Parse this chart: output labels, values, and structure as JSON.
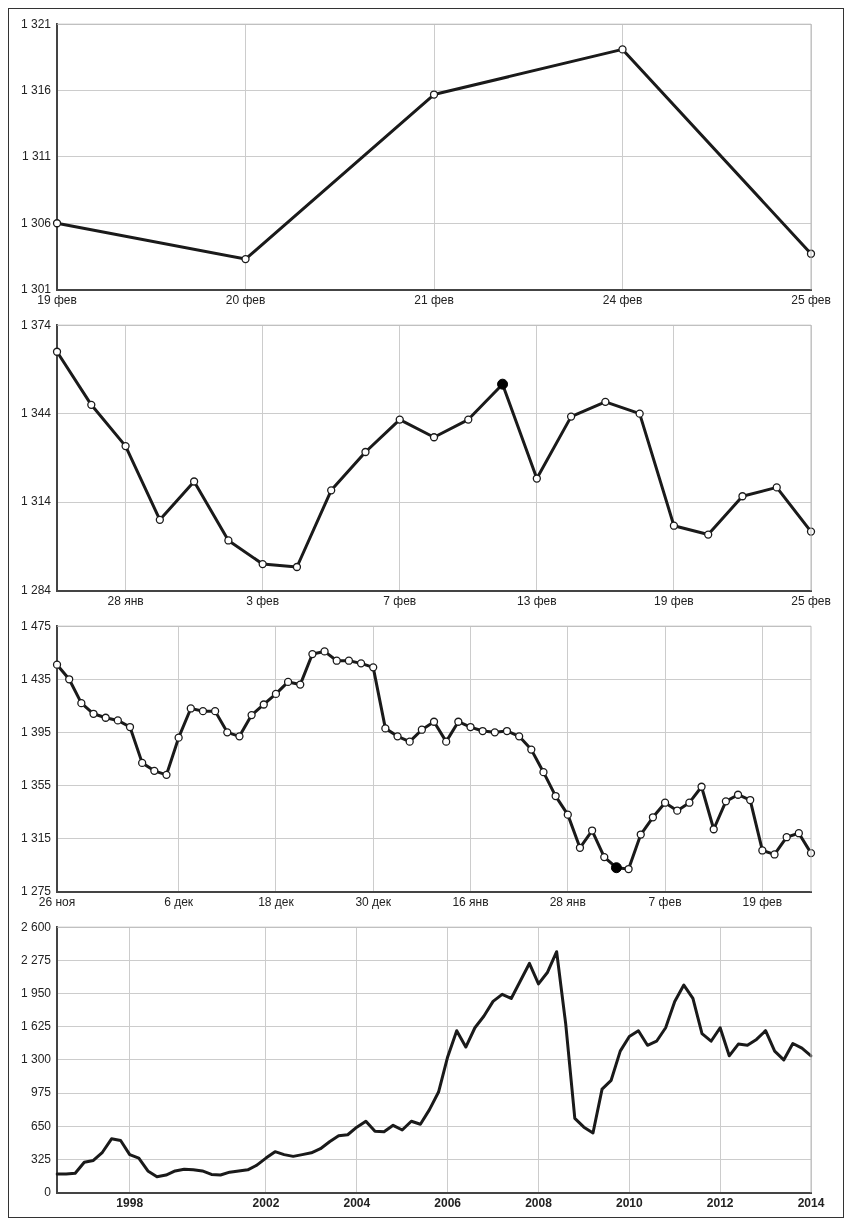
{
  "chart_data": [
    {
      "type": "line",
      "categories": [
        "19 фев",
        "20 фев",
        "21 фев",
        "24 фев",
        "25 фев"
      ],
      "series": [
        {
          "color": "#1a1a1a",
          "values": [
            1306.0,
            1303.3,
            1315.7,
            1319.1,
            1303.7
          ]
        }
      ],
      "ylim": [
        1301,
        1321
      ],
      "yticks": [
        {
          "value": 1301,
          "label": "1 301"
        },
        {
          "value": 1306,
          "label": "1 306"
        },
        {
          "value": 1311,
          "label": "1 311"
        },
        {
          "value": 1316,
          "label": "1 316"
        },
        {
          "value": 1321,
          "label": "1 321"
        }
      ],
      "grid": true,
      "marker": "circle",
      "line_style": "solid"
    },
    {
      "type": "line",
      "categories": [
        null,
        null,
        "28 янв",
        null,
        null,
        null,
        "3 фев",
        null,
        null,
        null,
        "7 фев",
        null,
        null,
        null,
        "13 фев",
        null,
        null,
        null,
        "19 фев",
        null,
        null,
        null,
        "25 фев"
      ],
      "series": [
        {
          "color": "#1a1a1a",
          "values": [
            1365,
            1347,
            1333,
            1308,
            1321,
            1301,
            1293,
            1292,
            1318,
            1331,
            1342,
            1336,
            1342,
            1354,
            1322,
            1343,
            1348,
            1344,
            1306,
            1303,
            1316,
            1319,
            1304
          ]
        },
        {
          "type": "scatter",
          "color": "#000000",
          "values": [
            null,
            null,
            null,
            null,
            null,
            null,
            null,
            null,
            null,
            null,
            null,
            null,
            null,
            1354,
            null,
            null,
            null,
            null,
            null,
            null,
            null,
            null,
            null
          ]
        }
      ],
      "ylim": [
        1284,
        1374
      ],
      "yticks": [
        {
          "value": 1284,
          "label": "1 284"
        },
        {
          "value": 1314,
          "label": "1 314"
        },
        {
          "value": 1344,
          "label": "1 344"
        },
        {
          "value": 1374,
          "label": "1 374"
        }
      ],
      "grid": true,
      "marker": "circle",
      "line_style": "solid"
    },
    {
      "type": "line",
      "categories": [
        "26 ноя",
        null,
        null,
        null,
        null,
        null,
        null,
        null,
        null,
        null,
        "6 дек",
        null,
        null,
        null,
        null,
        null,
        null,
        null,
        "18 дек",
        null,
        null,
        null,
        null,
        null,
        null,
        null,
        "30 дек",
        null,
        null,
        null,
        null,
        null,
        null,
        null,
        "16 янв",
        null,
        null,
        null,
        null,
        null,
        null,
        null,
        "28 янв",
        null,
        null,
        null,
        null,
        null,
        null,
        null,
        "7 фев",
        null,
        null,
        null,
        null,
        null,
        null,
        null,
        "19 фев",
        null,
        null,
        null,
        null
      ],
      "series": [
        {
          "color": "#1a1a1a",
          "values": [
            1446,
            1435,
            1417,
            1409,
            1406,
            1404,
            1399,
            1372,
            1366,
            1363,
            1391,
            1413,
            1411,
            1411,
            1395,
            1392,
            1408,
            1416,
            1424,
            1433,
            1431,
            1454,
            1456,
            1449,
            1449,
            1447,
            1444,
            1398,
            1392,
            1388,
            1397,
            1403,
            1388,
            1403,
            1399,
            1396,
            1395,
            1396,
            1392,
            1382,
            1365,
            1347,
            1333,
            1308,
            1321,
            1301,
            1293,
            1292,
            1318,
            1331,
            1342,
            1336,
            1342,
            1354,
            1322,
            1343,
            1348,
            1344,
            1306,
            1303,
            1316,
            1319,
            1304
          ]
        },
        {
          "type": "scatter",
          "color": "#000000",
          "values": [
            null,
            null,
            null,
            null,
            null,
            null,
            null,
            null,
            null,
            null,
            null,
            null,
            null,
            null,
            null,
            null,
            null,
            null,
            null,
            null,
            null,
            null,
            null,
            null,
            null,
            null,
            null,
            null,
            null,
            null,
            null,
            null,
            null,
            null,
            null,
            null,
            null,
            null,
            null,
            null,
            null,
            null,
            null,
            null,
            null,
            null,
            1293,
            null,
            null,
            null,
            null,
            null,
            null,
            null,
            null,
            null,
            null,
            null,
            null,
            null,
            null,
            null,
            null
          ]
        }
      ],
      "ylim": [
        1275,
        1475
      ],
      "yticks": [
        {
          "value": 1275,
          "label": "1 275"
        },
        {
          "value": 1315,
          "label": "1 315"
        },
        {
          "value": 1355,
          "label": "1 355"
        },
        {
          "value": 1395,
          "label": "1 395"
        },
        {
          "value": 1435,
          "label": "1 435"
        },
        {
          "value": 1475,
          "label": "1 475"
        }
      ],
      "grid": true,
      "marker": "circle",
      "line_style": "solid"
    },
    {
      "type": "line",
      "categories": [
        null,
        null,
        null,
        null,
        null,
        null,
        null,
        null,
        "1998",
        null,
        null,
        null,
        null,
        null,
        null,
        null,
        null,
        null,
        null,
        null,
        null,
        null,
        null,
        "2002",
        null,
        null,
        null,
        null,
        null,
        null,
        null,
        null,
        null,
        "2004",
        null,
        null,
        null,
        null,
        null,
        null,
        null,
        null,
        null,
        "2006",
        null,
        null,
        null,
        null,
        null,
        null,
        null,
        null,
        null,
        "2008",
        null,
        null,
        null,
        null,
        null,
        null,
        null,
        null,
        null,
        "2010",
        null,
        null,
        null,
        null,
        null,
        null,
        null,
        null,
        null,
        "2012",
        null,
        null,
        null,
        null,
        null,
        null,
        null,
        null,
        null,
        "2014"
      ],
      "series": [
        {
          "color": "#1a1a1a",
          "values": [
            183,
            183,
            189,
            298,
            315,
            395,
            527,
            510,
            372,
            338,
            212,
            155,
            172,
            212,
            229,
            223,
            212,
            178,
            172,
            200,
            212,
            223,
            269,
            338,
            401,
            372,
            355,
            372,
            390,
            430,
            498,
            556,
            567,
            641,
            699,
            601,
            596,
            659,
            613,
            699,
            670,
            813,
            985,
            1329,
            1586,
            1426,
            1615,
            1730,
            1873,
            1942,
            1902,
            2073,
            2245,
            2045,
            2159,
            2360,
            1650,
            727,
            641,
            584,
            1014,
            1100,
            1386,
            1529,
            1586,
            1443,
            1483,
            1615,
            1873,
            2033,
            1902,
            1558,
            1483,
            1615,
            1340,
            1455,
            1443,
            1501,
            1586,
            1386,
            1300,
            1461,
            1415,
            1340
          ]
        }
      ],
      "ylim": [
        0,
        2600
      ],
      "yticks": [
        0,
        {
          "value": 325,
          "label": "325"
        },
        {
          "value": 650,
          "label": "650"
        },
        {
          "value": 975,
          "label": "975"
        },
        {
          "value": 1300,
          "label": "1 300"
        },
        {
          "value": 1625,
          "label": "1 625"
        },
        {
          "value": 1950,
          "label": "1 950"
        },
        {
          "value": 2275,
          "label": "2 275"
        },
        {
          "value": 2600,
          "label": "2 600"
        }
      ],
      "grid": true,
      "marker": "none",
      "line_style": "solid"
    }
  ]
}
